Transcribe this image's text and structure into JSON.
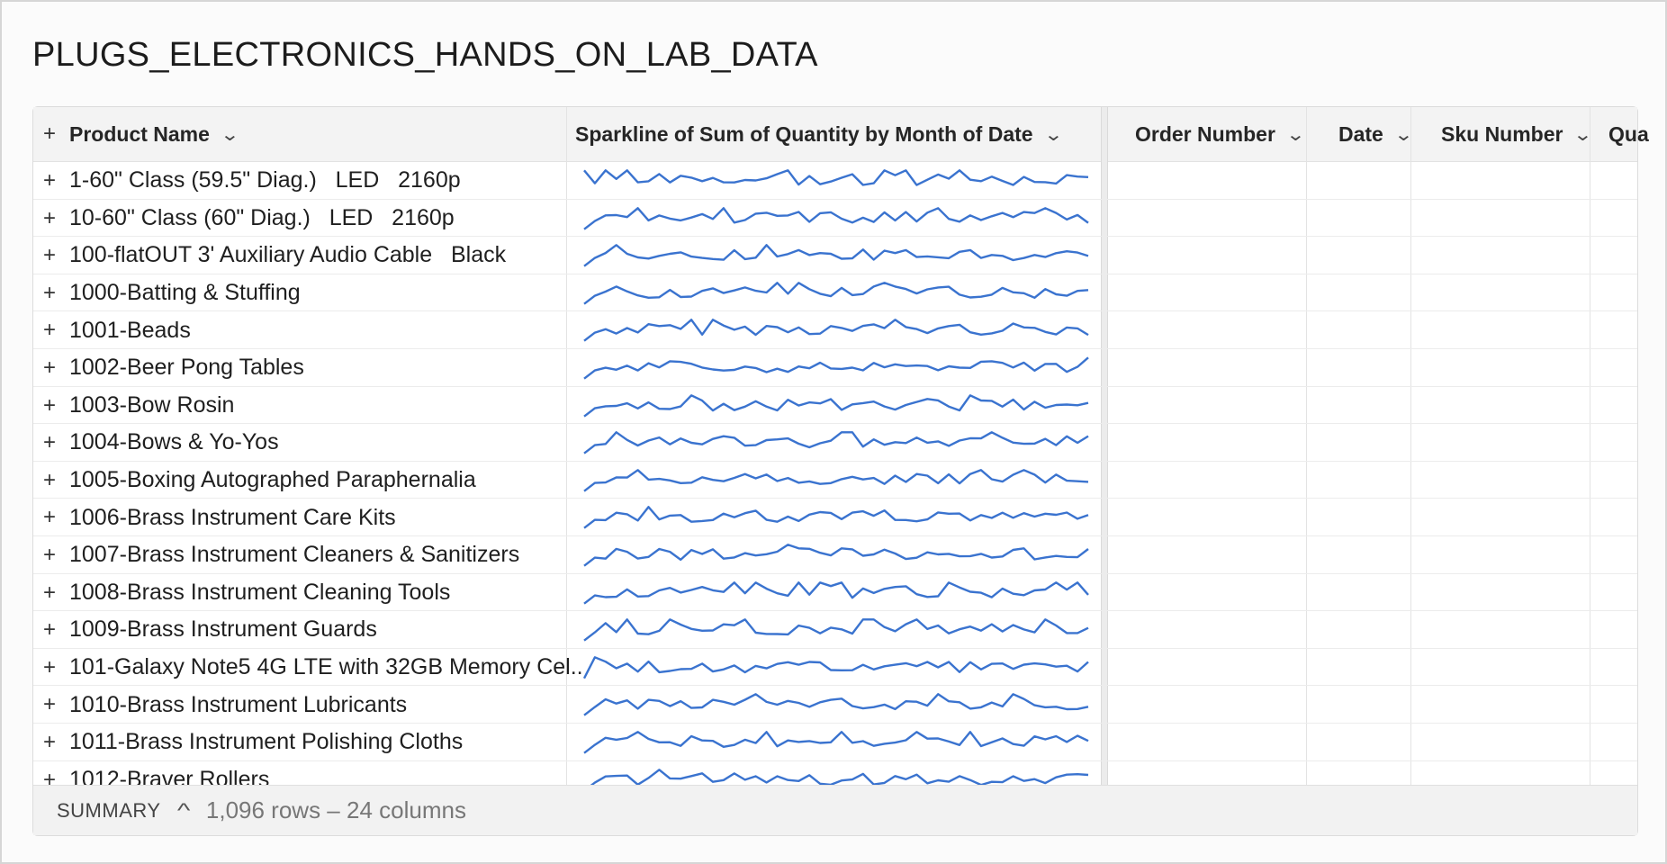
{
  "title": "PLUGS_ELECTRONICS_HANDS_ON_LAB_DATA",
  "colors": {
    "sparkline": "#3a73cf"
  },
  "columns": {
    "product": "Product Name",
    "sparkline": "Sparkline of Sum of Quantity by Month of Date",
    "order": "Order Number",
    "date": "Date",
    "sku": "Sku Number",
    "quantity": "Qua"
  },
  "icons": {
    "expand": "plus-icon",
    "sort": "chevron-down-icon",
    "summary_toggle": "chevron-up-icon"
  },
  "rows": [
    "1-60\" Class (59.5\" Diag.)   LED   2160p",
    "10-60\" Class (60\" Diag.)   LED   2160p",
    "100-flatOUT 3' Auxiliary Audio Cable   Black",
    "1000-Batting & Stuffing",
    "1001-Beads",
    "1002-Beer Pong Tables",
    "1003-Bow Rosin",
    "1004-Bows & Yo-Yos",
    "1005-Boxing Autographed Paraphernalia",
    "1006-Brass Instrument Care Kits",
    "1007-Brass Instrument Cleaners & Sanitizers",
    "1008-Brass Instrument Cleaning Tools",
    "1009-Brass Instrument Guards",
    "101-Galaxy Note5 4G LTE with 32GB Memory Cel..",
    "1010-Brass Instrument Lubricants",
    "1011-Brass Instrument Polishing Cloths",
    "1012-Braver Rollers"
  ],
  "summary": {
    "label": "SUMMARY",
    "stats": "1,096 rows – 24 columns"
  }
}
